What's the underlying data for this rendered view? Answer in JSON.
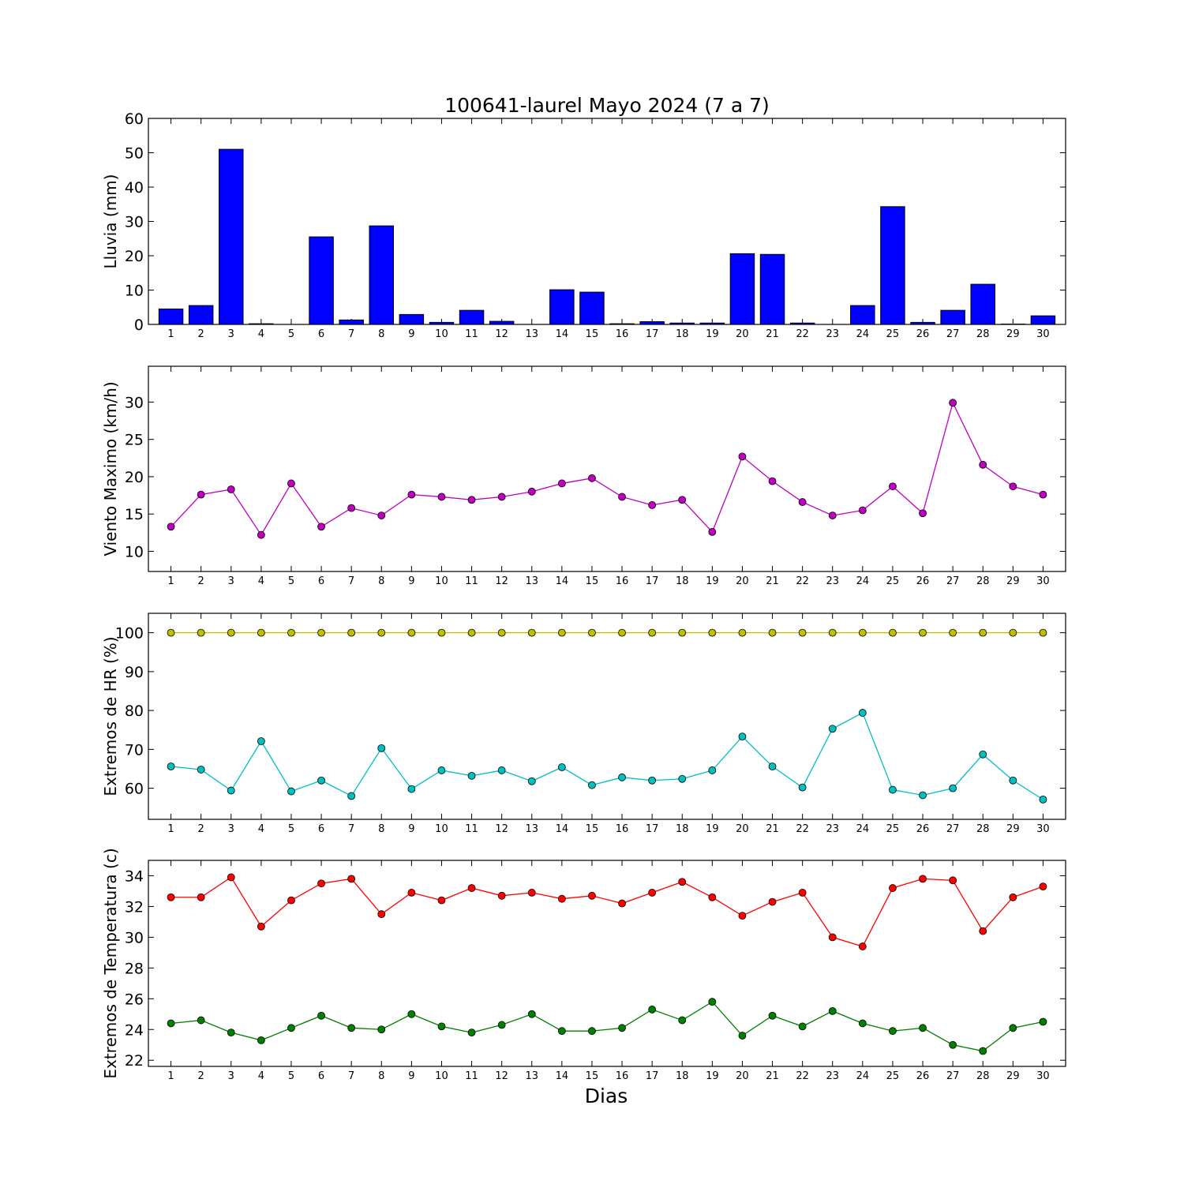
{
  "figure": {
    "title": "100641-laurel Mayo 2024  (7 a 7)",
    "xlabel": "Dias"
  },
  "chart_data": [
    {
      "type": "bar",
      "ylabel": "Lluvia (mm)",
      "categories": [
        "1",
        "2",
        "3",
        "4",
        "5",
        "6",
        "7",
        "8",
        "9",
        "10",
        "11",
        "12",
        "13",
        "14",
        "15",
        "16",
        "17",
        "18",
        "19",
        "20",
        "21",
        "22",
        "23",
        "24",
        "25",
        "26",
        "27",
        "28",
        "29",
        "30"
      ],
      "ylim": [
        0,
        60
      ],
      "yticks": [
        0,
        10,
        20,
        30,
        40,
        50,
        60
      ],
      "series": [
        {
          "color": "#0000ff",
          "values": [
            4.5,
            5.5,
            51.0,
            0.2,
            0.0,
            25.5,
            1.3,
            28.7,
            2.9,
            0.6,
            4.1,
            0.9,
            0.0,
            10.1,
            9.4,
            0.2,
            0.8,
            0.4,
            0.4,
            20.6,
            20.4,
            0.4,
            0.0,
            5.5,
            34.3,
            0.6,
            4.1,
            11.7,
            0.1,
            2.5
          ]
        }
      ]
    },
    {
      "type": "line",
      "ylabel": "Viento Maximo (km/h)",
      "categories": [
        "1",
        "2",
        "3",
        "4",
        "5",
        "6",
        "7",
        "8",
        "9",
        "10",
        "11",
        "12",
        "13",
        "14",
        "15",
        "16",
        "17",
        "18",
        "19",
        "20",
        "21",
        "22",
        "23",
        "24",
        "25",
        "26",
        "27",
        "28",
        "29",
        "30"
      ],
      "ylim": [
        7.3,
        34.8
      ],
      "yticks": [
        10,
        15,
        20,
        25,
        30
      ],
      "series": [
        {
          "color": "#bf00bf",
          "values": [
            13.3,
            17.6,
            18.3,
            12.2,
            19.1,
            13.3,
            15.8,
            14.8,
            17.6,
            17.3,
            16.9,
            17.3,
            18.0,
            19.1,
            19.8,
            17.3,
            16.2,
            16.9,
            12.6,
            22.7,
            19.4,
            16.6,
            14.8,
            15.5,
            18.7,
            15.1,
            29.9,
            21.6,
            18.7,
            17.6
          ]
        }
      ]
    },
    {
      "type": "line",
      "ylabel": "Extremos de HR (%)",
      "categories": [
        "1",
        "2",
        "3",
        "4",
        "5",
        "6",
        "7",
        "8",
        "9",
        "10",
        "11",
        "12",
        "13",
        "14",
        "15",
        "16",
        "17",
        "18",
        "19",
        "20",
        "21",
        "22",
        "23",
        "24",
        "25",
        "26",
        "27",
        "28",
        "29",
        "30"
      ],
      "ylim": [
        52,
        105
      ],
      "yticks": [
        60,
        70,
        80,
        90,
        100
      ],
      "series": [
        {
          "color": "#bfbf00",
          "values": [
            100,
            100,
            100,
            100,
            100,
            100,
            100,
            100,
            100,
            100,
            100,
            100,
            100,
            100,
            100,
            100,
            100,
            100,
            100,
            100,
            100,
            100,
            100,
            100,
            100,
            100,
            100,
            100,
            100,
            100
          ]
        },
        {
          "color": "#00bfbf",
          "values": [
            65.6,
            64.8,
            59.4,
            72.1,
            59.2,
            62.0,
            58.0,
            70.3,
            59.8,
            64.6,
            63.2,
            64.6,
            61.8,
            65.4,
            60.8,
            62.8,
            62.0,
            62.4,
            64.6,
            73.3,
            65.6,
            60.2,
            75.3,
            79.4,
            59.6,
            58.2,
            60.0,
            68.7,
            62.0,
            57.1
          ]
        }
      ]
    },
    {
      "type": "line",
      "ylabel": "Extremos de Temperatura (c)",
      "categories": [
        "1",
        "2",
        "3",
        "4",
        "5",
        "6",
        "7",
        "8",
        "9",
        "10",
        "11",
        "12",
        "13",
        "14",
        "15",
        "16",
        "17",
        "18",
        "19",
        "20",
        "21",
        "22",
        "23",
        "24",
        "25",
        "26",
        "27",
        "28",
        "29",
        "30"
      ],
      "ylim": [
        21.6,
        35.0
      ],
      "yticks": [
        22,
        24,
        26,
        28,
        30,
        32,
        34
      ],
      "series": [
        {
          "color": "#ff0000",
          "values": [
            32.6,
            32.6,
            33.9,
            30.7,
            32.4,
            33.5,
            33.8,
            31.5,
            32.9,
            32.4,
            33.2,
            32.7,
            32.9,
            32.5,
            32.7,
            32.2,
            32.9,
            33.6,
            32.6,
            31.4,
            32.3,
            32.9,
            30.0,
            29.4,
            33.2,
            33.8,
            33.7,
            30.4,
            32.6,
            33.3
          ]
        },
        {
          "color": "#008000",
          "values": [
            24.4,
            24.6,
            23.8,
            23.3,
            24.1,
            24.9,
            24.1,
            24.0,
            25.0,
            24.2,
            23.8,
            24.3,
            25.0,
            23.9,
            23.9,
            24.1,
            25.3,
            24.6,
            25.8,
            23.6,
            24.9,
            24.2,
            25.2,
            24.4,
            23.9,
            24.1,
            23.0,
            22.6,
            24.1,
            24.5
          ]
        }
      ]
    }
  ]
}
